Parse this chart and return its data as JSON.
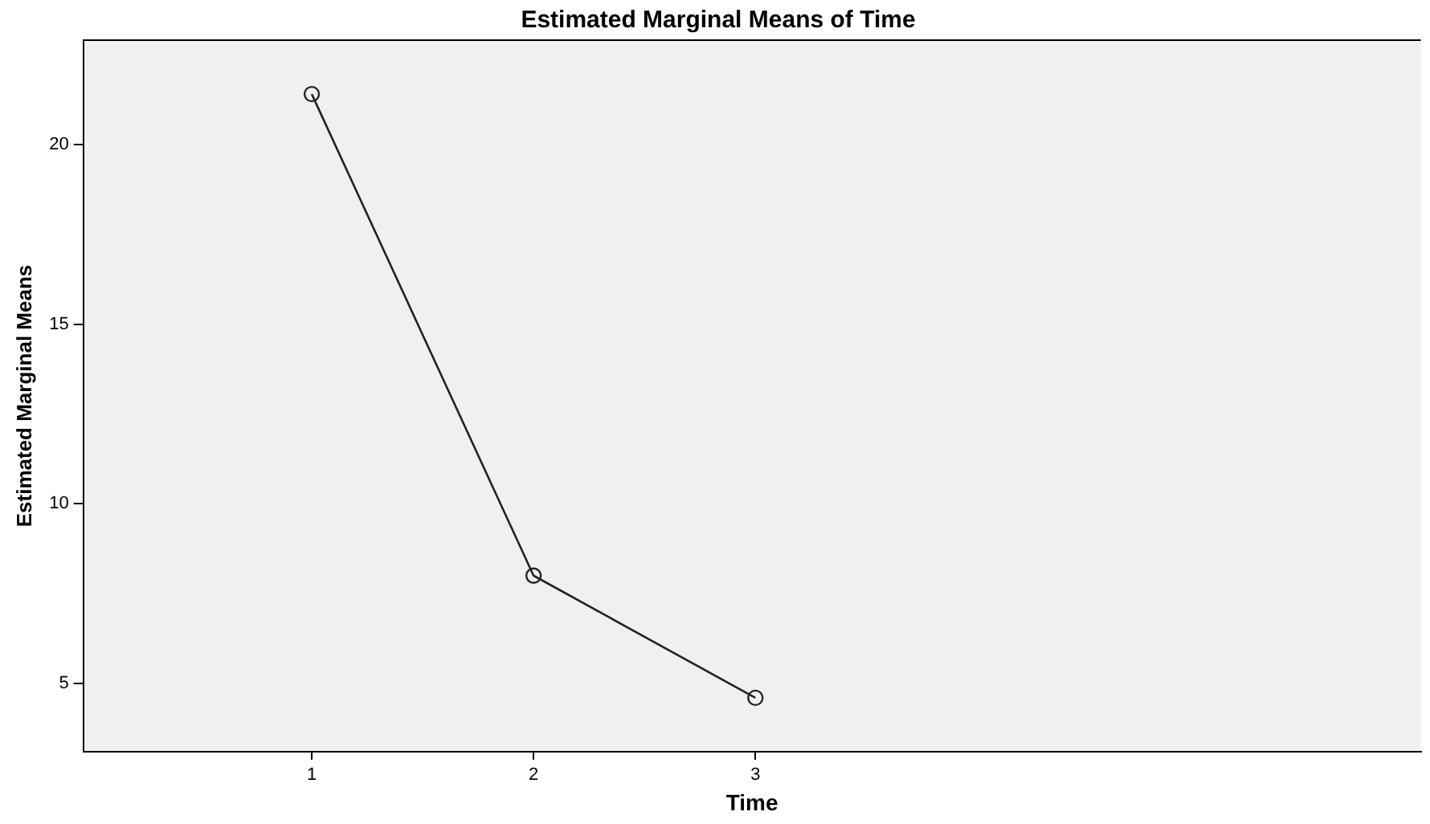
{
  "chart_data": {
    "type": "line",
    "title": "Estimated Marginal Means of Time",
    "xlabel": "Time",
    "ylabel": "Estimated Marginal Means",
    "categories": [
      "1",
      "2",
      "3"
    ],
    "series": [
      {
        "color": "#222222",
        "values": [
          21.4,
          8.0,
          4.6
        ]
      }
    ],
    "ylim": [
      3.1,
      22.9
    ],
    "yticks": [
      5,
      10,
      15,
      20
    ],
    "grid": false,
    "legend": false,
    "marker": "circle",
    "line_style": "solid"
  }
}
